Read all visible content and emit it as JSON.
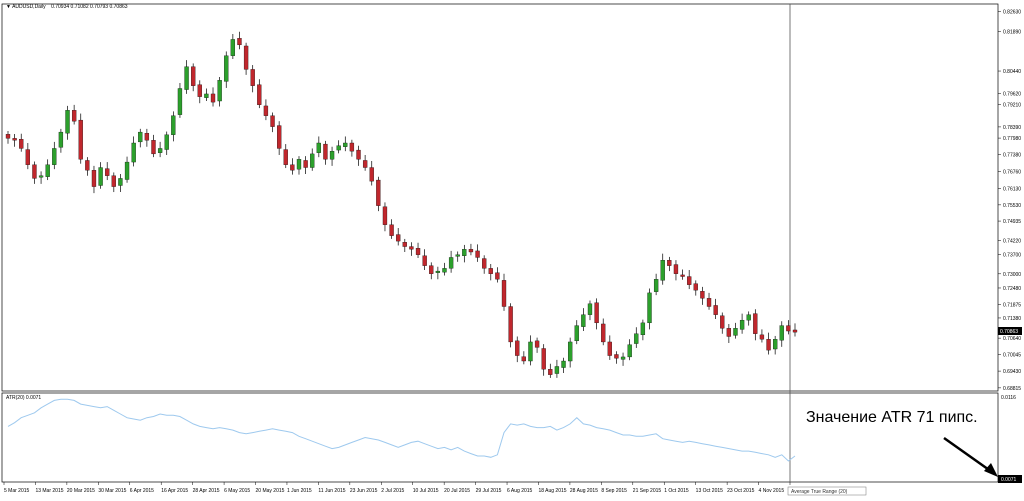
{
  "window": {
    "title": "AUDUSD,Daily",
    "ohlc": "0.70934 0.71082 0.70793 0.70863"
  },
  "colors": {
    "bull": "#2ca02c",
    "bear": "#c0272d",
    "wick": "#000000",
    "grid": "#000000",
    "atr_line": "#9ec9ee",
    "current_price_bg": "#000000",
    "annotation": "#000000"
  },
  "price_axis": {
    "ticks": [
      "0.82630",
      "0.81890",
      "0.80440",
      "0.79620",
      "0.79210",
      "0.78390",
      "0.77980",
      "0.77380",
      "0.76760",
      "0.76130",
      "0.75530",
      "0.74935",
      "0.74220",
      "0.73700",
      "0.73000",
      "0.72480",
      "0.71875",
      "0.71380",
      "0.70820",
      "0.70640",
      "0.70045",
      "0.69430",
      "0.68815"
    ],
    "current_price": "0.70863"
  },
  "atr_panel": {
    "label": "ATR(20) 0.0071",
    "ticks": [
      "0.0116",
      "0.0071"
    ],
    "indicator_name": "Average True Range (20)"
  },
  "time_axis": {
    "labels": [
      "5 Mar 2015",
      "13 Mar 2015",
      "20 Mar 2015",
      "30 Mar 2015",
      "6 Apr 2015",
      "16 Apr 2015",
      "28 Apr 2015",
      "6 May 2015",
      "20 May 2015",
      "1 Jun 2015",
      "11 Jun 2015",
      "23 Jun 2015",
      "2 Jul 2015",
      "10 Jul 2015",
      "20 Jul 2015",
      "29 Jul 2015",
      "6 Aug 2015",
      "18 Aug 2015",
      "28 Aug 2015",
      "8 Sep 2015",
      "21 Sep 2015",
      "1 Oct 2015",
      "13 Oct 2015",
      "23 Oct 2015",
      "4 Nov 2015",
      "16 Nov 2015"
    ]
  },
  "annotation": {
    "text": "Значение ATR 71 пипс."
  },
  "chart_data": {
    "type": "candlestick",
    "title": "AUDUSD,Daily",
    "series": [
      {
        "name": "AUDUSD",
        "close_path": [
          0.7797,
          0.779,
          0.776,
          0.77,
          0.765,
          0.766,
          0.77,
          0.776,
          0.782,
          0.79,
          0.786,
          0.772,
          0.768,
          0.762,
          0.769,
          0.766,
          0.762,
          0.765,
          0.771,
          0.778,
          0.782,
          0.779,
          0.774,
          0.776,
          0.781,
          0.788,
          0.798,
          0.806,
          0.799,
          0.795,
          0.796,
          0.793,
          0.801,
          0.81,
          0.816,
          0.814,
          0.805,
          0.799,
          0.792,
          0.788,
          0.784,
          0.776,
          0.77,
          0.768,
          0.772,
          0.769,
          0.774,
          0.778,
          0.772,
          0.775,
          0.777,
          0.778,
          0.775,
          0.772,
          0.769,
          0.764,
          0.755,
          0.748,
          0.744,
          0.742,
          0.74,
          0.739,
          0.737,
          0.733,
          0.73,
          0.731,
          0.732,
          0.736,
          0.737,
          0.739,
          0.738,
          0.736,
          0.732,
          0.73,
          0.728,
          0.718,
          0.705,
          0.7,
          0.698,
          0.705,
          0.703,
          0.695,
          0.693,
          0.696,
          0.698,
          0.705,
          0.711,
          0.715,
          0.719,
          0.712,
          0.705,
          0.7,
          0.699,
          0.6995,
          0.704,
          0.708,
          0.712,
          0.723,
          0.728,
          0.735,
          0.733,
          0.73,
          0.729,
          0.726,
          0.724,
          0.721,
          0.718,
          0.715,
          0.71,
          0.707,
          0.71,
          0.713,
          0.715,
          0.708,
          0.706,
          0.702,
          0.706,
          0.711,
          0.709,
          0.7086
        ]
      }
    ],
    "ylim": [
      0.687,
      0.829
    ],
    "atr": {
      "name": "ATR(20)",
      "values": [
        0.0095,
        0.0098,
        0.0102,
        0.0104,
        0.0106,
        0.011,
        0.0113,
        0.0116,
        0.0117,
        0.0117,
        0.0116,
        0.0113,
        0.0112,
        0.0111,
        0.011,
        0.0111,
        0.0108,
        0.0105,
        0.0102,
        0.0101,
        0.01,
        0.0102,
        0.0103,
        0.0105,
        0.0104,
        0.0104,
        0.0103,
        0.01,
        0.0097,
        0.0095,
        0.0094,
        0.0093,
        0.0094,
        0.0093,
        0.0092,
        0.009,
        0.0089,
        0.009,
        0.0091,
        0.0092,
        0.0093,
        0.0092,
        0.0091,
        0.009,
        0.0087,
        0.0085,
        0.0083,
        0.0081,
        0.0079,
        0.0077,
        0.0078,
        0.008,
        0.0082,
        0.0084,
        0.0086,
        0.0085,
        0.0084,
        0.0082,
        0.008,
        0.0078,
        0.008,
        0.0082,
        0.0083,
        0.0081,
        0.0079,
        0.0077,
        0.0078,
        0.0076,
        0.0078,
        0.0075,
        0.0073,
        0.0071,
        0.0071,
        0.007,
        0.0072,
        0.009,
        0.0097,
        0.0096,
        0.0097,
        0.0095,
        0.0094,
        0.0094,
        0.0095,
        0.0092,
        0.0094,
        0.0097,
        0.0102,
        0.0097,
        0.0096,
        0.0094,
        0.0093,
        0.0092,
        0.009,
        0.0088,
        0.0088,
        0.0087,
        0.0087,
        0.0088,
        0.0089,
        0.0085,
        0.0084,
        0.0083,
        0.0082,
        0.0083,
        0.0082,
        0.0081,
        0.008,
        0.0079,
        0.0078,
        0.0077,
        0.0076,
        0.0075,
        0.0075,
        0.0074,
        0.0073,
        0.0072,
        0.007,
        0.0072,
        0.0067,
        0.0071
      ],
      "ylim": [
        0.005,
        0.0122
      ]
    }
  }
}
